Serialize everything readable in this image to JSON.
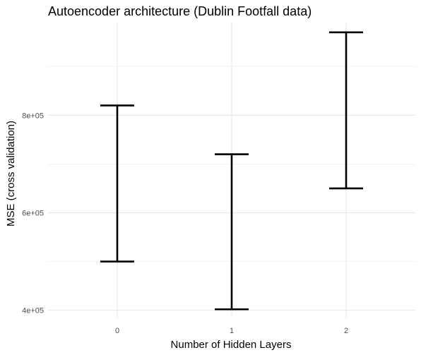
{
  "chart_data": {
    "type": "errorbar",
    "title": "Autoencoder architecture (Dublin Footfall data)",
    "xlabel": "Number of Hidden Layers",
    "ylabel": "MSE (cross validation)",
    "categories": [
      "0",
      "1",
      "2"
    ],
    "intervals": [
      {
        "x": "0",
        "ymin": 500000,
        "ymax": 820000
      },
      {
        "x": "1",
        "ymin": 402000,
        "ymax": 720000
      },
      {
        "x": "2",
        "ymin": 650000,
        "ymax": 970000
      }
    ],
    "y_ticks": [
      400000,
      600000,
      800000
    ],
    "y_tick_labels": [
      "4e+05",
      "6e+05",
      "8e+05"
    ],
    "y_minor_ticks": [
      500000,
      700000,
      900000
    ],
    "ylim": [
      385000,
      990000
    ],
    "grid": true,
    "colors": {
      "bar": "#000000",
      "grid": "#e6e6e6",
      "background": "#ffffff"
    }
  }
}
